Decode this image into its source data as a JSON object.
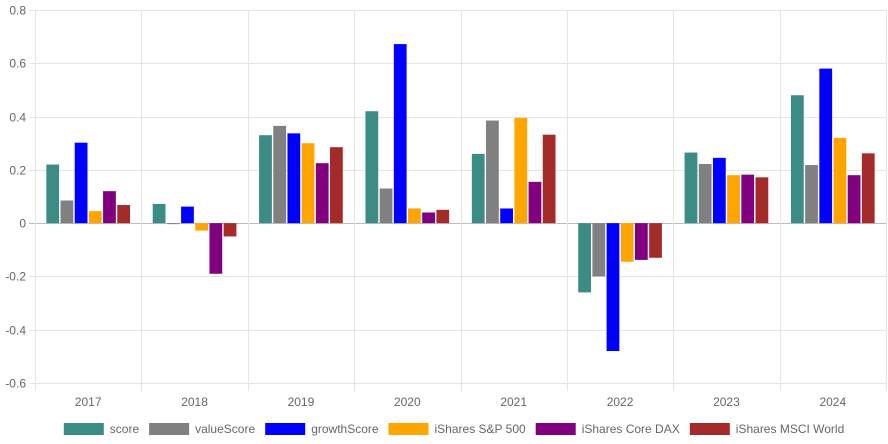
{
  "chart_data": {
    "type": "bar",
    "title": "",
    "xlabel": "",
    "ylabel": "",
    "categories": [
      "2017",
      "2018",
      "2019",
      "2020",
      "2021",
      "2022",
      "2023",
      "2024"
    ],
    "ylim": [
      -0.6,
      0.8
    ],
    "yticks": [
      -0.6,
      -0.4,
      -0.2,
      0,
      0.2,
      0.4,
      0.6,
      0.8
    ],
    "ytick_labels": [
      "-0.6",
      "-0.4",
      "-0.2",
      "0",
      "0.2",
      "0.4",
      "0.6",
      "0.8"
    ],
    "grid": true,
    "legend_position": "bottom",
    "series": [
      {
        "name": "score",
        "color": "#3a8c85",
        "values": [
          0.22,
          0.072,
          0.33,
          0.42,
          0.26,
          -0.26,
          0.265,
          0.48
        ]
      },
      {
        "name": "valueScore",
        "color": "#808080",
        "values": [
          0.085,
          -0.003,
          0.365,
          0.13,
          0.385,
          -0.2,
          0.222,
          0.218
        ]
      },
      {
        "name": "growthScore",
        "color": "#0000ff",
        "values": [
          0.302,
          0.062,
          0.337,
          0.672,
          0.055,
          -0.48,
          0.245,
          0.58
        ]
      },
      {
        "name": "iShares S&P 500",
        "color": "#ffa500",
        "values": [
          0.045,
          -0.028,
          0.3,
          0.055,
          0.395,
          -0.145,
          0.18,
          0.32
        ]
      },
      {
        "name": "iShares Core DAX",
        "color": "#800080",
        "values": [
          0.12,
          -0.19,
          0.225,
          0.04,
          0.155,
          -0.138,
          0.182,
          0.18
        ]
      },
      {
        "name": "iShares MSCI World",
        "color": "#a52a2a",
        "values": [
          0.068,
          -0.05,
          0.285,
          0.05,
          0.332,
          -0.13,
          0.172,
          0.262
        ]
      }
    ]
  }
}
